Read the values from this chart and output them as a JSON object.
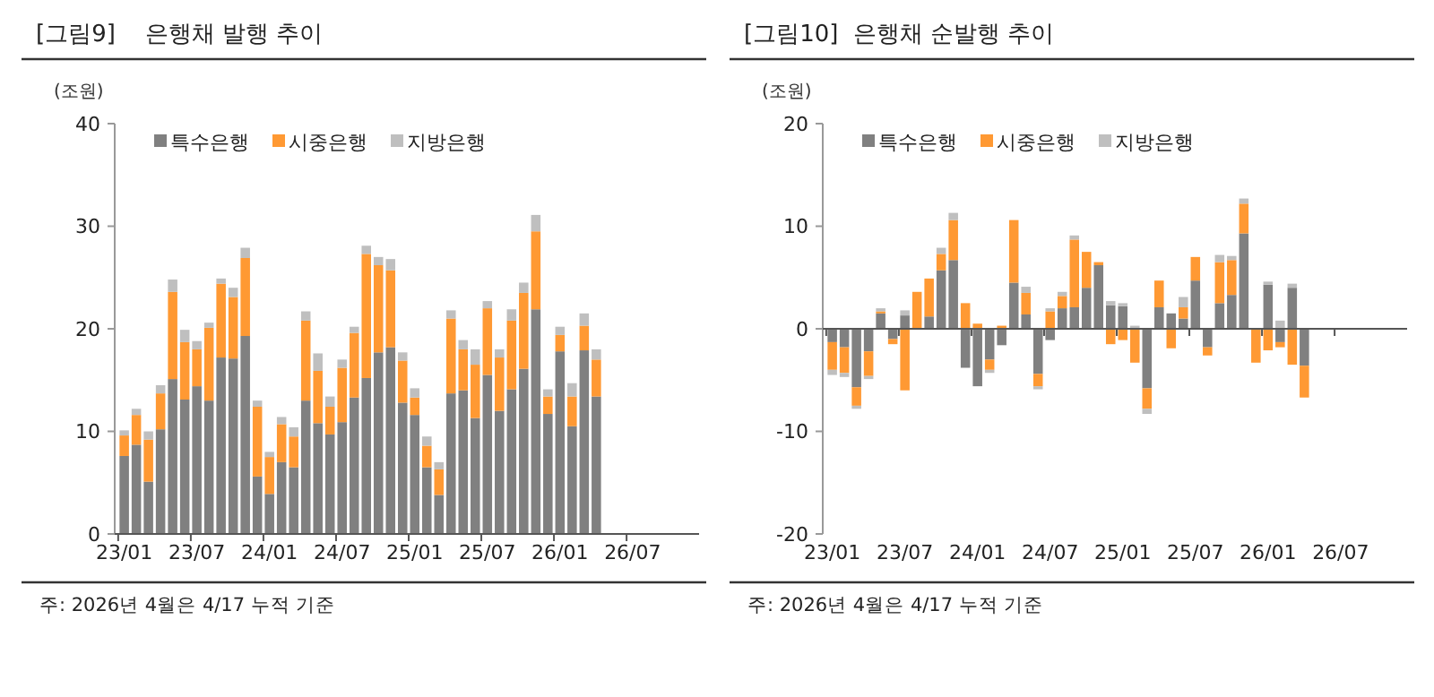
{
  "chart_data": [
    {
      "type": "bar",
      "title": "[그림9]    은행채 발행 추이",
      "ylabel": "(조원)",
      "stacked": true,
      "legend": "top left",
      "ylim": [
        0,
        40
      ],
      "yticks": [
        0,
        10,
        20,
        30,
        40
      ],
      "categories": [
        "23/01",
        null,
        null,
        null,
        null,
        null,
        "23/07",
        null,
        null,
        null,
        null,
        null,
        "24/01",
        null,
        null,
        null,
        null,
        null,
        "24/07",
        null,
        null,
        null,
        null,
        null,
        "25/01",
        null,
        null,
        null,
        null,
        null,
        "25/07",
        null,
        null,
        null,
        null,
        null,
        "26/01",
        null,
        null,
        null,
        null,
        null,
        "26/07",
        null,
        null,
        null,
        null,
        null
      ],
      "series": [
        {
          "name": "특수은행",
          "color": "#808080",
          "values": [
            7.6,
            8.7,
            5.1,
            10.2,
            15.1,
            13.1,
            14.4,
            13.0,
            17.2,
            17.1,
            19.3,
            5.6,
            3.9,
            7.0,
            6.5,
            13.0,
            10.8,
            9.7,
            10.9,
            13.3,
            15.2,
            17.7,
            18.2,
            12.8,
            11.6,
            6.5,
            3.8,
            13.7,
            14.0,
            11.3,
            15.5,
            12.0,
            14.1,
            16.1,
            21.9,
            11.7,
            17.8,
            10.5,
            17.9,
            13.4,
            null,
            null,
            null,
            null,
            null,
            null,
            null,
            null
          ]
        },
        {
          "name": "시중은행",
          "color": "#ff9933",
          "values": [
            2.0,
            2.9,
            4.1,
            3.5,
            8.5,
            5.6,
            3.6,
            7.1,
            7.2,
            6.0,
            7.6,
            6.8,
            3.6,
            3.7,
            3.0,
            7.8,
            5.1,
            2.7,
            5.3,
            6.3,
            12.1,
            8.5,
            7.5,
            4.1,
            1.7,
            2.1,
            2.5,
            7.3,
            4.0,
            5.2,
            6.5,
            5.2,
            6.7,
            7.4,
            7.6,
            1.7,
            1.6,
            2.9,
            2.4,
            3.6,
            null,
            null,
            null,
            null,
            null,
            null,
            null,
            null
          ]
        },
        {
          "name": "지방은행",
          "color": "#bfbfbf",
          "values": [
            0.5,
            0.6,
            0.8,
            0.8,
            1.2,
            1.2,
            0.8,
            0.5,
            0.5,
            0.9,
            1.0,
            0.6,
            0.5,
            0.7,
            0.9,
            0.9,
            1.7,
            1.0,
            0.8,
            0.6,
            0.8,
            0.8,
            1.1,
            0.8,
            0.9,
            0.9,
            0.7,
            0.8,
            0.9,
            1.5,
            0.7,
            0.8,
            1.1,
            1.0,
            1.6,
            0.7,
            0.8,
            1.3,
            1.2,
            1.0,
            null,
            null,
            null,
            null,
            null,
            null,
            null,
            null
          ]
        }
      ],
      "annotations": [
        "주: 2026년 4월은 4/17 누적 기준"
      ]
    },
    {
      "type": "bar",
      "title": "[그림10]  은행채 순발행 추이",
      "ylabel": "(조원)",
      "stacked": true,
      "legend": "top left",
      "ylim": [
        -20,
        20
      ],
      "yticks": [
        -20,
        -10,
        0,
        10,
        20
      ],
      "categories": [
        "23/01",
        null,
        null,
        null,
        null,
        null,
        "23/07",
        null,
        null,
        null,
        null,
        null,
        "24/01",
        null,
        null,
        null,
        null,
        null,
        "24/07",
        null,
        null,
        null,
        null,
        null,
        "25/01",
        null,
        null,
        null,
        null,
        null,
        "25/07",
        null,
        null,
        null,
        null,
        null,
        "26/01",
        null,
        null,
        null,
        null,
        null,
        "26/07",
        null,
        null,
        null,
        null,
        null
      ],
      "series": [
        {
          "name": "특수은행",
          "color": "#808080",
          "values": [
            -1.3,
            -1.8,
            -5.7,
            -2.2,
            1.5,
            -1.0,
            1.3,
            0,
            1.2,
            5.7,
            6.7,
            -3.8,
            -5.6,
            -3.0,
            -1.6,
            4.5,
            1.4,
            -4.4,
            -1.1,
            2.0,
            2.1,
            4.0,
            6.2,
            2.3,
            2.2,
            0,
            -5.8,
            2.1,
            1.5,
            1.0,
            4.7,
            -1.8,
            2.5,
            3.3,
            9.3,
            0,
            4.3,
            -1.3,
            4.0,
            -3.6,
            null,
            null,
            null,
            null,
            null,
            null,
            null,
            null
          ]
        },
        {
          "name": "시중은행",
          "color": "#ff9933",
          "values": [
            -2.7,
            -2.5,
            -1.8,
            -2.4,
            0.2,
            -0.5,
            -6.0,
            3.6,
            3.7,
            1.6,
            3.9,
            2.5,
            0.5,
            -1.0,
            0.3,
            6.1,
            2.1,
            -1.2,
            1.7,
            1.2,
            6.6,
            3.5,
            0.3,
            -1.5,
            -1.1,
            -3.3,
            -2.0,
            2.6,
            -1.9,
            1.1,
            2.3,
            -0.8,
            4.0,
            3.4,
            2.9,
            -3.3,
            -2.1,
            -0.5,
            -3.5,
            -3.1,
            null,
            null,
            null,
            null,
            null,
            null,
            null,
            null
          ]
        },
        {
          "name": "지방은행",
          "color": "#bfbfbf",
          "values": [
            -0.5,
            -0.4,
            -0.3,
            -0.3,
            0.3,
            0,
            0.5,
            0,
            0,
            0.6,
            0.7,
            0,
            0,
            -0.3,
            0,
            0,
            0.6,
            -0.3,
            0.3,
            0.4,
            0.4,
            0,
            0,
            0.4,
            0.3,
            0.3,
            -0.5,
            0,
            0,
            1.0,
            0,
            0,
            0.7,
            0.4,
            0.5,
            0,
            0.3,
            0.8,
            0.4,
            0,
            null,
            null,
            null,
            null,
            null,
            null,
            null,
            null
          ]
        }
      ],
      "annotations": [
        "주: 2026년 4월은 4/17 누적 기준"
      ]
    }
  ]
}
